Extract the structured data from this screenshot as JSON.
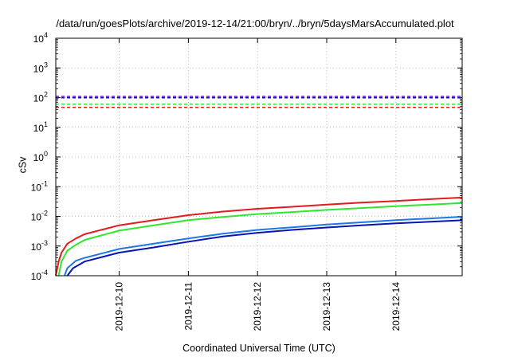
{
  "chart_data": {
    "type": "line",
    "title": "/data/run/goesPlots/archive/2019-12-14/21:00/bryn/../bryn/5daysMarsAccumulated.plot",
    "xlabel": "Coordinated Universal Time (UTC)",
    "ylabel": "cSv",
    "y_scale": "log",
    "ylim": [
      0.0001,
      10000
    ],
    "y_ticks": [
      {
        "exp": "4",
        "value": 10000
      },
      {
        "exp": "3",
        "value": 1000
      },
      {
        "exp": "2",
        "value": 100
      },
      {
        "exp": "1",
        "value": 10
      },
      {
        "exp": "0",
        "value": 1
      },
      {
        "exp": "-1",
        "value": 0.1
      },
      {
        "exp": "-2",
        "value": 0.01
      },
      {
        "exp": "-3",
        "value": 0.001
      },
      {
        "exp": "-4",
        "value": 0.0001
      }
    ],
    "xlim": [
      "2019-12-09T02:00",
      "2019-12-14T23:00"
    ],
    "x_ticks": [
      {
        "label": "2019-12-10",
        "value": "2019-12-10"
      },
      {
        "label": "2019-12-11",
        "value": "2019-12-11"
      },
      {
        "label": "2019-12-12",
        "value": "2019-12-12"
      },
      {
        "label": "2019-12-13",
        "value": "2019-12-13"
      },
      {
        "label": "2019-12-14",
        "value": "2019-12-14"
      }
    ],
    "grid": true,
    "grid_style": "dotted",
    "series": [
      {
        "color": "#e41a1c",
        "style": "solid",
        "x": [
          "2019-12-09T02:00",
          "2019-12-09T03:00",
          "2019-12-09T04:00",
          "2019-12-09T06:00",
          "2019-12-09T09:00",
          "2019-12-09T12:00",
          "2019-12-10T00:00",
          "2019-12-10T12:00",
          "2019-12-11T00:00",
          "2019-12-11T12:00",
          "2019-12-12T00:00",
          "2019-12-12T12:00",
          "2019-12-13T00:00",
          "2019-12-13T12:00",
          "2019-12-14T00:00",
          "2019-12-14T12:00",
          "2019-12-14T23:00"
        ],
        "y": [
          0.0001,
          0.0003,
          0.0006,
          0.0012,
          0.0018,
          0.0025,
          0.005,
          0.0075,
          0.011,
          0.0145,
          0.018,
          0.021,
          0.025,
          0.029,
          0.033,
          0.038,
          0.043
        ]
      },
      {
        "color": "#2ee82e",
        "style": "solid",
        "x": [
          "2019-12-09T03:00",
          "2019-12-09T04:00",
          "2019-12-09T06:00",
          "2019-12-09T09:00",
          "2019-12-09T12:00",
          "2019-12-10T00:00",
          "2019-12-10T12:00",
          "2019-12-11T00:00",
          "2019-12-11T12:00",
          "2019-12-12T00:00",
          "2019-12-12T12:00",
          "2019-12-13T00:00",
          "2019-12-13T12:00",
          "2019-12-14T00:00",
          "2019-12-14T12:00",
          "2019-12-14T23:00"
        ],
        "y": [
          0.0001,
          0.0003,
          0.0007,
          0.0011,
          0.0016,
          0.0033,
          0.005,
          0.0075,
          0.0095,
          0.012,
          0.014,
          0.0165,
          0.019,
          0.022,
          0.025,
          0.028
        ]
      },
      {
        "color": "#1e78e6",
        "style": "solid",
        "x": [
          "2019-12-09T05:00",
          "2019-12-09T06:00",
          "2019-12-09T09:00",
          "2019-12-09T12:00",
          "2019-12-10T00:00",
          "2019-12-10T12:00",
          "2019-12-11T00:00",
          "2019-12-11T12:00",
          "2019-12-12T00:00",
          "2019-12-12T12:00",
          "2019-12-13T00:00",
          "2019-12-13T12:00",
          "2019-12-14T00:00",
          "2019-12-14T12:00",
          "2019-12-14T23:00"
        ],
        "y": [
          0.0001,
          0.00018,
          0.00032,
          0.0004,
          0.0008,
          0.0012,
          0.0018,
          0.0026,
          0.0035,
          0.0043,
          0.0053,
          0.0063,
          0.0075,
          0.0085,
          0.0097
        ]
      },
      {
        "color": "#0a14b4",
        "style": "solid",
        "x": [
          "2019-12-09T06:00",
          "2019-12-09T08:00",
          "2019-12-09T12:00",
          "2019-12-10T00:00",
          "2019-12-10T12:00",
          "2019-12-11T00:00",
          "2019-12-11T12:00",
          "2019-12-12T00:00",
          "2019-12-12T12:00",
          "2019-12-13T00:00",
          "2019-12-13T12:00",
          "2019-12-14T00:00",
          "2019-12-14T12:00",
          "2019-12-14T23:00"
        ],
        "y": [
          0.0001,
          0.00018,
          0.0003,
          0.0006,
          0.0009,
          0.0014,
          0.0021,
          0.0028,
          0.0035,
          0.0042,
          0.005,
          0.0058,
          0.0066,
          0.0074
        ]
      },
      {
        "color": "#7f00d4",
        "style": "dashed",
        "x": [
          "2019-12-09T02:00",
          "2019-12-14T23:00"
        ],
        "y": [
          110,
          110
        ]
      },
      {
        "color": "#0a14b4",
        "style": "dashed",
        "x": [
          "2019-12-09T02:00",
          "2019-12-14T23:00"
        ],
        "y": [
          98,
          98
        ]
      },
      {
        "color": "#2ee82e",
        "style": "dashed",
        "x": [
          "2019-12-09T02:00",
          "2019-12-14T23:00"
        ],
        "y": [
          60,
          60
        ]
      },
      {
        "color": "#e41a1c",
        "style": "dashed",
        "x": [
          "2019-12-09T02:00",
          "2019-12-14T23:00"
        ],
        "y": [
          47,
          47
        ]
      }
    ]
  }
}
